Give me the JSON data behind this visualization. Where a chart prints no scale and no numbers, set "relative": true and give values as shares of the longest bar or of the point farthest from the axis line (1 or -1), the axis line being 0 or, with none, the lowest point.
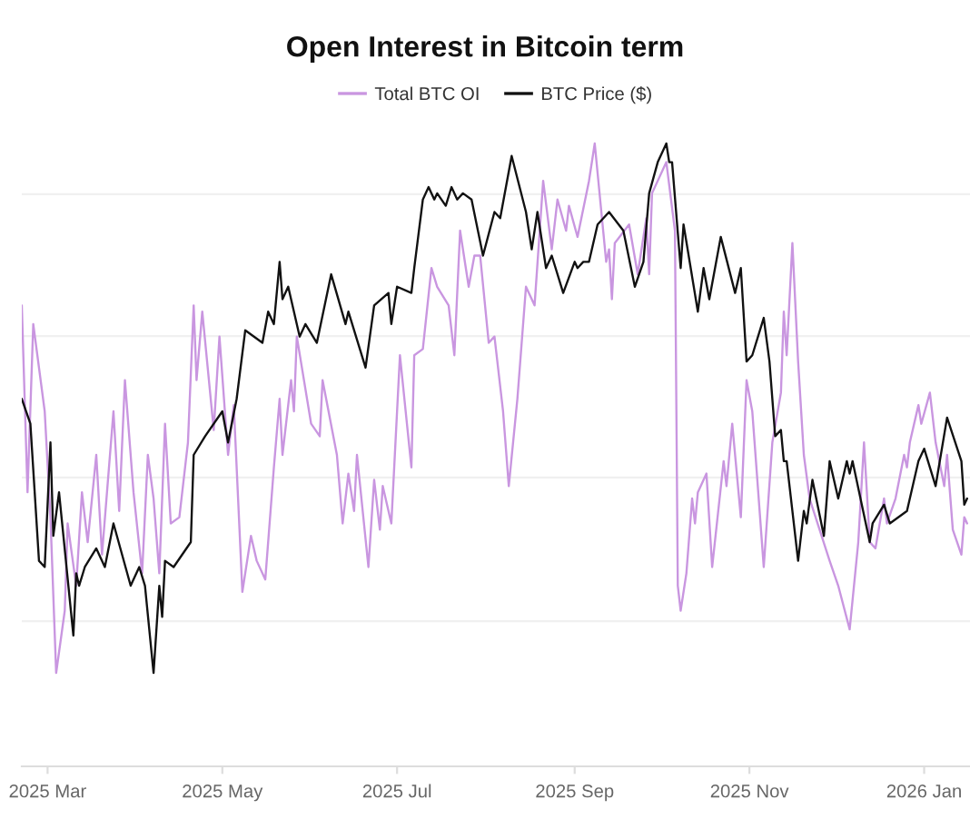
{
  "chart_data": {
    "type": "line",
    "title": "Open Interest in Bitcoin term",
    "relative": true,
    "grid": "y",
    "legend": "top",
    "tick_labels": "x",
    "xlim": [
      "2025-02-20",
      "2026-01-17"
    ],
    "xticks": [
      {
        "value": "2025-03-01",
        "label": "2025 Mar"
      },
      {
        "value": "2025-05-01",
        "label": "2025 May"
      },
      {
        "value": "2025-07-01",
        "label": "2025 Jul"
      },
      {
        "value": "2025-09-01",
        "label": "2025 Sep"
      },
      {
        "value": "2025-11-01",
        "label": "2025 Nov"
      },
      {
        "value": "2026-01-01",
        "label": "2026 Jan"
      }
    ],
    "series": [
      {
        "name": "Total BTC OI",
        "color": "#c996e0",
        "x": [
          "2025-02-20",
          "2025-02-22",
          "2025-02-24",
          "2025-02-28",
          "2025-03-02",
          "2025-03-04",
          "2025-03-07",
          "2025-03-08",
          "2025-03-11",
          "2025-03-13",
          "2025-03-15",
          "2025-03-18",
          "2025-03-20",
          "2025-03-24",
          "2025-03-26",
          "2025-03-28",
          "2025-03-31",
          "2025-04-03",
          "2025-04-05",
          "2025-04-07",
          "2025-04-09",
          "2025-04-11",
          "2025-04-13",
          "2025-04-16",
          "2025-04-19",
          "2025-04-21",
          "2025-04-22",
          "2025-04-24",
          "2025-04-28",
          "2025-04-30",
          "2025-05-03",
          "2025-05-05",
          "2025-05-08",
          "2025-05-11",
          "2025-05-13",
          "2025-05-16",
          "2025-05-19",
          "2025-05-21",
          "2025-05-22",
          "2025-05-25",
          "2025-05-26",
          "2025-05-27",
          "2025-06-01",
          "2025-06-04",
          "2025-06-05",
          "2025-06-10",
          "2025-06-12",
          "2025-06-14",
          "2025-06-16",
          "2025-06-17",
          "2025-06-21",
          "2025-06-23",
          "2025-06-25",
          "2025-06-26",
          "2025-06-29",
          "2025-07-02",
          "2025-07-06",
          "2025-07-07",
          "2025-07-10",
          "2025-07-13",
          "2025-07-15",
          "2025-07-19",
          "2025-07-21",
          "2025-07-23",
          "2025-07-26",
          "2025-07-28",
          "2025-07-30",
          "2025-08-02",
          "2025-08-04",
          "2025-08-07",
          "2025-08-09",
          "2025-08-12",
          "2025-08-15",
          "2025-08-18",
          "2025-08-21",
          "2025-08-24",
          "2025-08-26",
          "2025-08-29",
          "2025-08-30",
          "2025-09-02",
          "2025-09-06",
          "2025-09-08",
          "2025-09-12",
          "2025-09-13",
          "2025-09-14",
          "2025-09-15",
          "2025-09-20",
          "2025-09-23",
          "2025-09-26",
          "2025-09-27",
          "2025-09-28",
          "2025-10-03",
          "2025-10-06",
          "2025-10-07",
          "2025-10-08",
          "2025-10-10",
          "2025-10-12",
          "2025-10-13",
          "2025-10-14",
          "2025-10-17",
          "2025-10-19",
          "2025-10-23",
          "2025-10-24",
          "2025-10-26",
          "2025-10-29",
          "2025-10-31",
          "2025-11-02",
          "2025-11-06",
          "2025-11-09",
          "2025-11-12",
          "2025-11-13",
          "2025-11-14",
          "2025-11-16",
          "2025-11-18",
          "2025-11-20",
          "2025-11-22",
          "2025-11-29",
          "2025-12-02",
          "2025-12-06",
          "2025-12-09",
          "2025-12-11",
          "2025-12-13",
          "2025-12-15",
          "2025-12-18",
          "2025-12-19",
          "2025-12-22",
          "2025-12-25",
          "2025-12-26",
          "2025-12-27",
          "2025-12-30",
          "2025-12-31",
          "2026-01-03",
          "2026-01-05",
          "2026-01-08",
          "2026-01-09",
          "2026-01-11",
          "2026-01-14",
          "2026-01-15",
          "2026-01-16"
        ],
        "values": [
          0.74,
          0.44,
          0.71,
          0.57,
          0.4,
          0.15,
          0.25,
          0.39,
          0.29,
          0.44,
          0.36,
          0.5,
          0.34,
          0.57,
          0.41,
          0.62,
          0.44,
          0.31,
          0.5,
          0.43,
          0.31,
          0.55,
          0.39,
          0.4,
          0.52,
          0.74,
          0.62,
          0.73,
          0.54,
          0.69,
          0.5,
          0.58,
          0.28,
          0.37,
          0.33,
          0.3,
          0.48,
          0.59,
          0.5,
          0.62,
          0.57,
          0.69,
          0.55,
          0.53,
          0.62,
          0.5,
          0.39,
          0.47,
          0.41,
          0.5,
          0.32,
          0.46,
          0.38,
          0.45,
          0.39,
          0.66,
          0.48,
          0.66,
          0.67,
          0.8,
          0.77,
          0.74,
          0.66,
          0.86,
          0.77,
          0.82,
          0.82,
          0.68,
          0.69,
          0.57,
          0.45,
          0.59,
          0.77,
          0.74,
          0.94,
          0.83,
          0.91,
          0.86,
          0.9,
          0.85,
          0.94,
          1.0,
          0.81,
          0.83,
          0.75,
          0.84,
          0.87,
          0.79,
          0.88,
          0.79,
          0.92,
          0.97,
          0.86,
          0.29,
          0.25,
          0.31,
          0.43,
          0.39,
          0.44,
          0.47,
          0.32,
          0.49,
          0.45,
          0.55,
          0.4,
          0.62,
          0.57,
          0.32,
          0.52,
          0.6,
          0.73,
          0.66,
          0.84,
          0.65,
          0.5,
          0.43,
          0.33,
          0.29,
          0.22,
          0.36,
          0.52,
          0.36,
          0.35,
          0.43,
          0.39,
          0.43,
          0.5,
          0.48,
          0.52,
          0.58,
          0.55,
          0.6,
          0.52,
          0.45,
          0.5,
          0.38,
          0.34,
          0.4,
          0.39
        ]
      },
      {
        "name": "BTC Price ($)",
        "color": "#111111",
        "x": [
          "2025-02-20",
          "2025-02-23",
          "2025-02-26",
          "2025-02-28",
          "2025-03-02",
          "2025-03-03",
          "2025-03-05",
          "2025-03-10",
          "2025-03-11",
          "2025-03-12",
          "2025-03-14",
          "2025-03-18",
          "2025-03-21",
          "2025-03-24",
          "2025-03-30",
          "2025-04-02",
          "2025-04-04",
          "2025-04-07",
          "2025-04-09",
          "2025-04-10",
          "2025-04-11",
          "2025-04-14",
          "2025-04-20",
          "2025-04-21",
          "2025-04-25",
          "2025-05-01",
          "2025-05-03",
          "2025-05-06",
          "2025-05-09",
          "2025-05-15",
          "2025-05-17",
          "2025-05-19",
          "2025-05-21",
          "2025-05-22",
          "2025-05-24",
          "2025-05-28",
          "2025-05-30",
          "2025-06-03",
          "2025-06-08",
          "2025-06-13",
          "2025-06-14",
          "2025-06-20",
          "2025-06-23",
          "2025-06-28",
          "2025-06-29",
          "2025-07-01",
          "2025-07-06",
          "2025-07-07",
          "2025-07-10",
          "2025-07-12",
          "2025-07-14",
          "2025-07-15",
          "2025-07-18",
          "2025-07-20",
          "2025-07-22",
          "2025-07-24",
          "2025-07-27",
          "2025-07-31",
          "2025-08-04",
          "2025-08-06",
          "2025-08-10",
          "2025-08-15",
          "2025-08-17",
          "2025-08-19",
          "2025-08-22",
          "2025-08-24",
          "2025-08-28",
          "2025-09-01",
          "2025-09-02",
          "2025-09-04",
          "2025-09-06",
          "2025-09-09",
          "2025-09-13",
          "2025-09-18",
          "2025-09-22",
          "2025-09-25",
          "2025-09-27",
          "2025-09-30",
          "2025-10-03",
          "2025-10-04",
          "2025-10-05",
          "2025-10-08",
          "2025-10-09",
          "2025-10-14",
          "2025-10-16",
          "2025-10-18",
          "2025-10-22",
          "2025-10-27",
          "2025-10-29",
          "2025-10-31",
          "2025-11-02",
          "2025-11-06",
          "2025-11-08",
          "2025-11-10",
          "2025-11-12",
          "2025-11-13",
          "2025-11-14",
          "2025-11-18",
          "2025-11-20",
          "2025-11-21",
          "2025-11-23",
          "2025-11-27",
          "2025-11-29",
          "2025-12-02",
          "2025-12-05",
          "2025-12-06",
          "2025-12-07",
          "2025-12-13",
          "2025-12-14",
          "2025-12-18",
          "2025-12-20",
          "2025-12-26",
          "2025-12-30",
          "2026-01-01",
          "2026-01-05",
          "2026-01-09",
          "2026-01-14",
          "2026-01-15",
          "2026-01-16"
        ],
        "values": [
          0.59,
          0.55,
          0.33,
          0.32,
          0.52,
          0.37,
          0.44,
          0.21,
          0.31,
          0.29,
          0.32,
          0.35,
          0.32,
          0.39,
          0.29,
          0.32,
          0.29,
          0.15,
          0.29,
          0.24,
          0.33,
          0.32,
          0.36,
          0.5,
          0.53,
          0.57,
          0.52,
          0.59,
          0.7,
          0.68,
          0.73,
          0.71,
          0.81,
          0.75,
          0.77,
          0.69,
          0.71,
          0.68,
          0.79,
          0.71,
          0.73,
          0.64,
          0.74,
          0.76,
          0.71,
          0.77,
          0.76,
          0.8,
          0.91,
          0.93,
          0.91,
          0.92,
          0.9,
          0.93,
          0.91,
          0.92,
          0.91,
          0.82,
          0.89,
          0.88,
          0.98,
          0.89,
          0.83,
          0.89,
          0.8,
          0.82,
          0.76,
          0.81,
          0.8,
          0.81,
          0.81,
          0.87,
          0.89,
          0.86,
          0.77,
          0.81,
          0.92,
          0.97,
          1.0,
          0.97,
          0.97,
          0.8,
          0.87,
          0.73,
          0.8,
          0.75,
          0.85,
          0.76,
          0.8,
          0.65,
          0.66,
          0.72,
          0.65,
          0.53,
          0.54,
          0.49,
          0.49,
          0.33,
          0.41,
          0.39,
          0.46,
          0.37,
          0.49,
          0.43,
          0.49,
          0.47,
          0.49,
          0.36,
          0.39,
          0.42,
          0.39,
          0.41,
          0.49,
          0.51,
          0.45,
          0.56,
          0.49,
          0.42,
          0.43
        ]
      }
    ]
  }
}
